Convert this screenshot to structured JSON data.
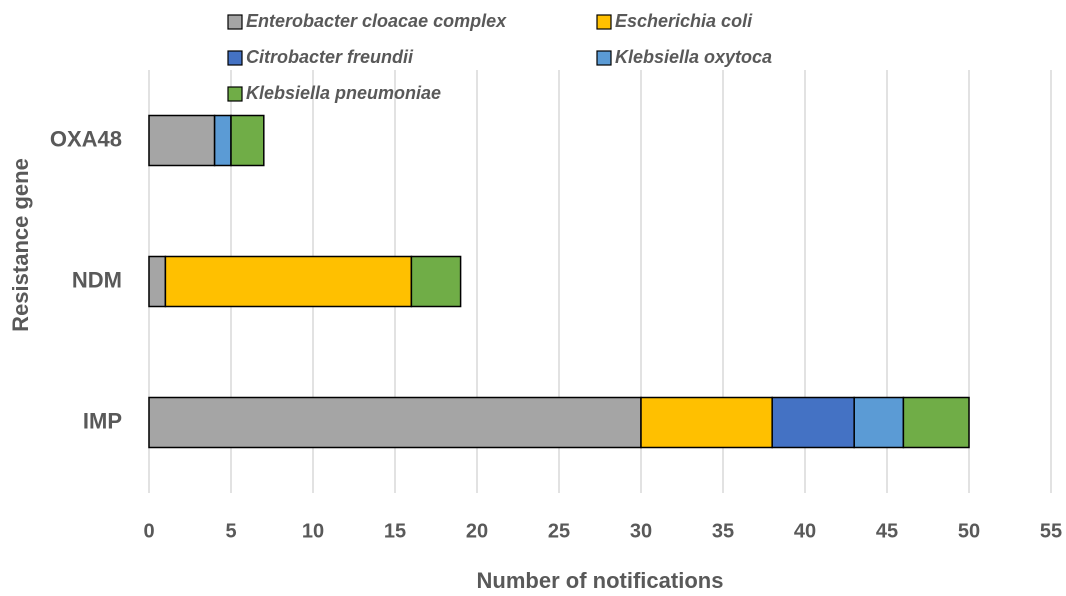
{
  "chart_data": {
    "type": "stacked-barh",
    "xlabel": "Number of notifications",
    "ylabel": "Resistance gene",
    "categories": [
      "OXA48",
      "NDM",
      "IMP"
    ],
    "series": [
      {
        "name": "Enterobacter cloacae complex",
        "color": "#a5a5a5",
        "values": [
          4,
          1,
          30
        ]
      },
      {
        "name": "Escherichia coli",
        "color": "#ffc000",
        "values": [
          0,
          15,
          8
        ]
      },
      {
        "name": "Citrobacter freundii",
        "color": "#4472c4",
        "values": [
          0,
          0,
          5
        ]
      },
      {
        "name": "Klebsiella oxytoca",
        "color": "#5b9bd5",
        "values": [
          1,
          0,
          3
        ]
      },
      {
        "name": "Klebsiella pneumoniae",
        "color": "#70ad47",
        "values": [
          2,
          3,
          4
        ]
      }
    ],
    "xlim": [
      0,
      55
    ],
    "xticks": [
      0,
      5,
      10,
      15,
      20,
      25,
      30,
      35,
      40,
      45,
      50,
      55
    ],
    "grid": true,
    "legend": "top"
  }
}
